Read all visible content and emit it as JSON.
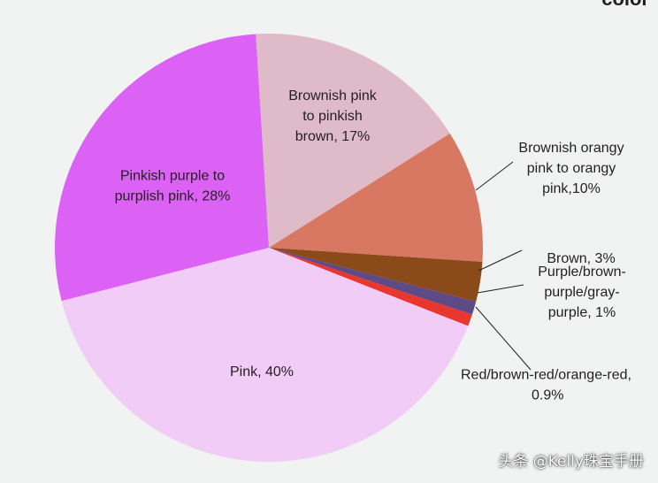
{
  "header_fragment": "color",
  "watermark": "头条 @Kelly珠宝手册",
  "chart_data": {
    "type": "pie",
    "slices": [
      {
        "label": "Brownish pink to pinkish brown, 17%",
        "label_lines": [
          "Brownish pink",
          "to pinkish",
          "brown, 17%"
        ],
        "value": 17,
        "color": "#dfbbc9",
        "label_pos": "inside"
      },
      {
        "label": "Brownish orangy pink to orangy pink,10%",
        "label_lines": [
          "Brownish orangy",
          "pink to orangy",
          "pink,10%"
        ],
        "value": 10,
        "color": "#d97862",
        "label_pos": "outside"
      },
      {
        "label": "Brown, 3%",
        "label_lines": [
          "Brown, 3%"
        ],
        "value": 3,
        "color": "#8b4a1a",
        "label_pos": "outside"
      },
      {
        "label": "Purple/brown-purple/gray-purple, 1%",
        "label_lines": [
          "Purple/brown-",
          "purple/gray-",
          "purple, 1%"
        ],
        "value": 1,
        "color": "#5e4b85",
        "label_pos": "outside"
      },
      {
        "label": "Red/brown-red/orange-red, 0.9%",
        "label_lines": [
          "Red/brown-red/orange-red,",
          "0.9%"
        ],
        "value": 0.9,
        "color": "#e8372f",
        "label_pos": "outside"
      },
      {
        "label": "Pink, 40%",
        "label_lines": [
          "Pink, 40%"
        ],
        "value": 40,
        "color": "#f0ccf7",
        "label_pos": "inside"
      },
      {
        "label": "Pinkish purple to purplish pink, 28%",
        "label_lines": [
          "Pinkish purple to",
          "purplish pink, 28%"
        ],
        "value": 28,
        "color": "#dc62f5",
        "label_pos": "inside"
      }
    ]
  }
}
